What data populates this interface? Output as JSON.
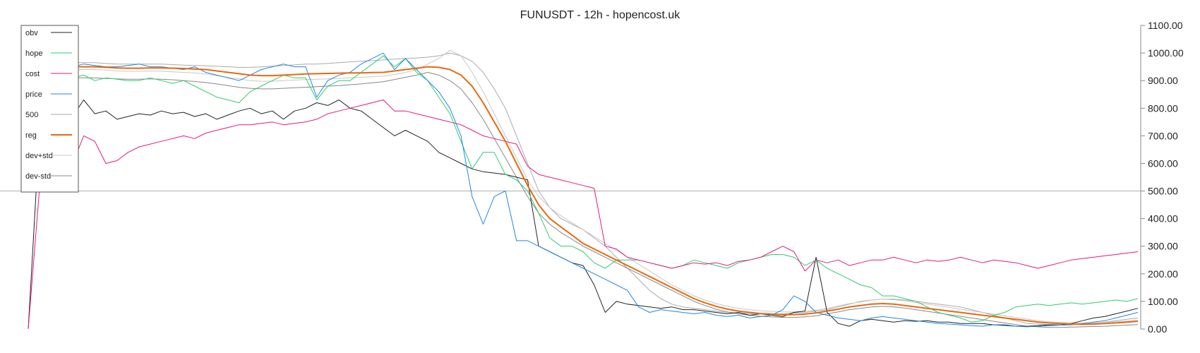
{
  "chart_data": {
    "type": "line",
    "title": "FUNUSDT - 12h - hopencost.uk",
    "xlabel": "",
    "ylabel": "",
    "ylim": [
      0,
      1100
    ],
    "yticks": [
      "0.00",
      "100.00",
      "200.00",
      "300.00",
      "400.00",
      "500.00",
      "600.00",
      "700.00",
      "800.00",
      "900.00",
      "1000.00",
      "1100.00"
    ],
    "reference_line": 500,
    "grid": false,
    "legend_position": "top-left",
    "x_count": 101,
    "series": [
      {
        "name": "obv",
        "color": "#222222",
        "width": 1,
        "values": [
          0,
          700,
          920,
          840,
          770,
          830,
          780,
          790,
          760,
          770,
          780,
          775,
          790,
          780,
          785,
          770,
          780,
          760,
          775,
          790,
          800,
          780,
          790,
          760,
          790,
          800,
          820,
          810,
          830,
          800,
          790,
          760,
          730,
          700,
          720,
          700,
          680,
          640,
          620,
          600,
          580,
          570,
          565,
          560,
          550,
          540,
          300,
          280,
          260,
          240,
          230,
          160,
          60,
          100,
          90,
          85,
          80,
          75,
          80,
          70,
          70,
          65,
          60,
          55,
          60,
          50,
          55,
          50,
          45,
          60,
          65,
          260,
          60,
          20,
          10,
          30,
          35,
          30,
          25,
          30,
          28,
          30,
          25,
          25,
          20,
          20,
          20,
          15,
          15,
          10,
          10,
          12,
          15,
          14,
          20,
          30,
          40,
          45,
          55,
          65,
          75
        ]
      },
      {
        "name": "hope",
        "color": "#2ecc71",
        "width": 1,
        "values": [
          880,
          940,
          930,
          920,
          910,
          920,
          900,
          910,
          905,
          900,
          900,
          910,
          900,
          890,
          900,
          880,
          860,
          840,
          830,
          820,
          860,
          880,
          900,
          920,
          910,
          910,
          830,
          880,
          900,
          900,
          930,
          960,
          990,
          950,
          980,
          930,
          900,
          840,
          780,
          680,
          580,
          640,
          640,
          560,
          540,
          500,
          420,
          330,
          300,
          300,
          280,
          240,
          220,
          250,
          250,
          250,
          240,
          230,
          220,
          230,
          250,
          240,
          230,
          220,
          240,
          250,
          260,
          270,
          270,
          260,
          230,
          250,
          220,
          200,
          180,
          160,
          150,
          120,
          120,
          110,
          100,
          80,
          60,
          50,
          40,
          25,
          30,
          50,
          60,
          80,
          85,
          90,
          85,
          90,
          95,
          90,
          95,
          100,
          105,
          100,
          110
        ]
      },
      {
        "name": "cost",
        "color": "#e6197f",
        "width": 1,
        "values": [
          0,
          500,
          820,
          800,
          600,
          700,
          680,
          600,
          610,
          640,
          660,
          670,
          680,
          690,
          700,
          690,
          710,
          720,
          730,
          740,
          740,
          745,
          750,
          740,
          745,
          750,
          760,
          780,
          790,
          800,
          810,
          820,
          830,
          790,
          790,
          780,
          770,
          760,
          750,
          740,
          720,
          700,
          690,
          680,
          670,
          590,
          560,
          550,
          540,
          530,
          520,
          510,
          300,
          290,
          260,
          250,
          240,
          230,
          220,
          230,
          240,
          235,
          240,
          230,
          245,
          250,
          260,
          280,
          300,
          280,
          210,
          250,
          240,
          250,
          230,
          240,
          250,
          250,
          260,
          250,
          240,
          250,
          245,
          250,
          260,
          250,
          240,
          250,
          245,
          240,
          230,
          220,
          230,
          240,
          250,
          255,
          260,
          265,
          270,
          275,
          280
        ]
      },
      {
        "name": "price",
        "color": "#1e88e5",
        "width": 1,
        "values": [
          960,
          950,
          940,
          940,
          950,
          960,
          955,
          950,
          950,
          955,
          960,
          950,
          950,
          945,
          940,
          950,
          930,
          920,
          910,
          900,
          920,
          940,
          950,
          960,
          950,
          950,
          840,
          900,
          920,
          930,
          960,
          980,
          1000,
          940,
          980,
          940,
          900,
          860,
          800,
          700,
          480,
          380,
          480,
          500,
          320,
          320,
          300,
          280,
          260,
          240,
          220,
          200,
          180,
          160,
          140,
          80,
          60,
          70,
          65,
          60,
          55,
          60,
          50,
          45,
          50,
          40,
          45,
          50,
          70,
          120,
          100,
          60,
          50,
          40,
          35,
          30,
          40,
          45,
          40,
          35,
          30,
          25,
          20,
          18,
          15,
          12,
          10,
          15,
          12,
          10,
          8,
          10,
          12,
          14,
          15,
          20,
          25,
          30,
          40,
          50,
          60
        ]
      },
      {
        "name": "500",
        "color": "#aaaaaa",
        "width": 1,
        "values": [
          950,
          960,
          965,
          965,
          965,
          965,
          965,
          962,
          960,
          960,
          960,
          960,
          960,
          958,
          956,
          955,
          954,
          952,
          950,
          948,
          948,
          950,
          952,
          955,
          957,
          960,
          960,
          962,
          965,
          968,
          970,
          972,
          975,
          978,
          980,
          982,
          985,
          990,
          1000,
          990,
          970,
          930,
          870,
          800,
          700,
          600,
          500,
          440,
          400,
          380,
          360,
          330,
          300,
          260,
          220,
          180,
          140,
          110,
          90,
          80,
          75,
          70,
          65,
          60,
          58,
          56,
          55,
          54,
          55,
          58,
          60,
          65,
          70,
          80,
          90,
          100,
          105,
          108,
          108,
          105,
          100,
          95,
          90,
          85,
          80,
          70,
          60,
          50,
          40,
          30,
          20,
          18,
          16,
          16,
          17,
          18,
          20,
          25,
          30,
          35,
          40
        ]
      },
      {
        "name": "reg",
        "color": "#e8690c",
        "width": 2,
        "values": [
          940,
          945,
          950,
          950,
          950,
          950,
          950,
          948,
          946,
          945,
          945,
          946,
          946,
          945,
          944,
          942,
          940,
          935,
          930,
          925,
          920,
          918,
          918,
          920,
          922,
          924,
          925,
          926,
          927,
          928,
          928,
          929,
          930,
          935,
          940,
          945,
          950,
          948,
          940,
          920,
          880,
          820,
          750,
          680,
          600,
          520,
          450,
          400,
          370,
          340,
          310,
          290,
          270,
          250,
          230,
          210,
          190,
          170,
          150,
          130,
          110,
          95,
          82,
          72,
          65,
          60,
          56,
          54,
          52,
          52,
          54,
          58,
          65,
          72,
          80,
          85,
          90,
          92,
          90,
          85,
          80,
          75,
          70,
          65,
          60,
          55,
          50,
          45,
          40,
          35,
          30,
          25,
          22,
          20,
          18,
          17,
          18,
          20,
          22,
          25,
          28
        ]
      },
      {
        "name": "dev+std",
        "color": "#c8c8c8",
        "width": 1,
        "values": [
          930,
          935,
          940,
          940,
          940,
          940,
          940,
          938,
          935,
          934,
          934,
          935,
          934,
          932,
          930,
          928,
          924,
          918,
          912,
          906,
          900,
          898,
          898,
          900,
          902,
          904,
          905,
          906,
          908,
          910,
          912,
          914,
          916,
          922,
          930,
          940,
          960,
          980,
          1010,
          990,
          930,
          860,
          780,
          700,
          620,
          540,
          480,
          440,
          410,
          385,
          360,
          335,
          310,
          285,
          260,
          235,
          210,
          185,
          160,
          140,
          120,
          105,
          92,
          82,
          75,
          70,
          66,
          64,
          62,
          62,
          64,
          68,
          75,
          84,
          92,
          98,
          104,
          108,
          106,
          102,
          96,
          90,
          84,
          78,
          72,
          66,
          60,
          54,
          48,
          42,
          36,
          30,
          26,
          24,
          22,
          21,
          22,
          24,
          26,
          29,
          32
        ]
      },
      {
        "name": "dev-std",
        "color": "#888888",
        "width": 1,
        "values": [
          900,
          905,
          910,
          910,
          910,
          910,
          910,
          908,
          906,
          905,
          905,
          906,
          905,
          903,
          900,
          897,
          893,
          888,
          882,
          876,
          872,
          870,
          870,
          872,
          874,
          876,
          878,
          880,
          882,
          885,
          888,
          892,
          896,
          904,
          912,
          920,
          930,
          920,
          900,
          870,
          820,
          760,
          690,
          620,
          550,
          480,
          420,
          380,
          350,
          325,
          300,
          280,
          260,
          240,
          220,
          200,
          180,
          160,
          140,
          120,
          100,
          85,
          72,
          62,
          55,
          50,
          46,
          44,
          42,
          42,
          44,
          48,
          55,
          62,
          70,
          75,
          80,
          82,
          80,
          76,
          70,
          64,
          58,
          52,
          46,
          40,
          34,
          28,
          22,
          16,
          10,
          8,
          6,
          6,
          7,
          8,
          9,
          10,
          12,
          14,
          16
        ]
      }
    ]
  }
}
